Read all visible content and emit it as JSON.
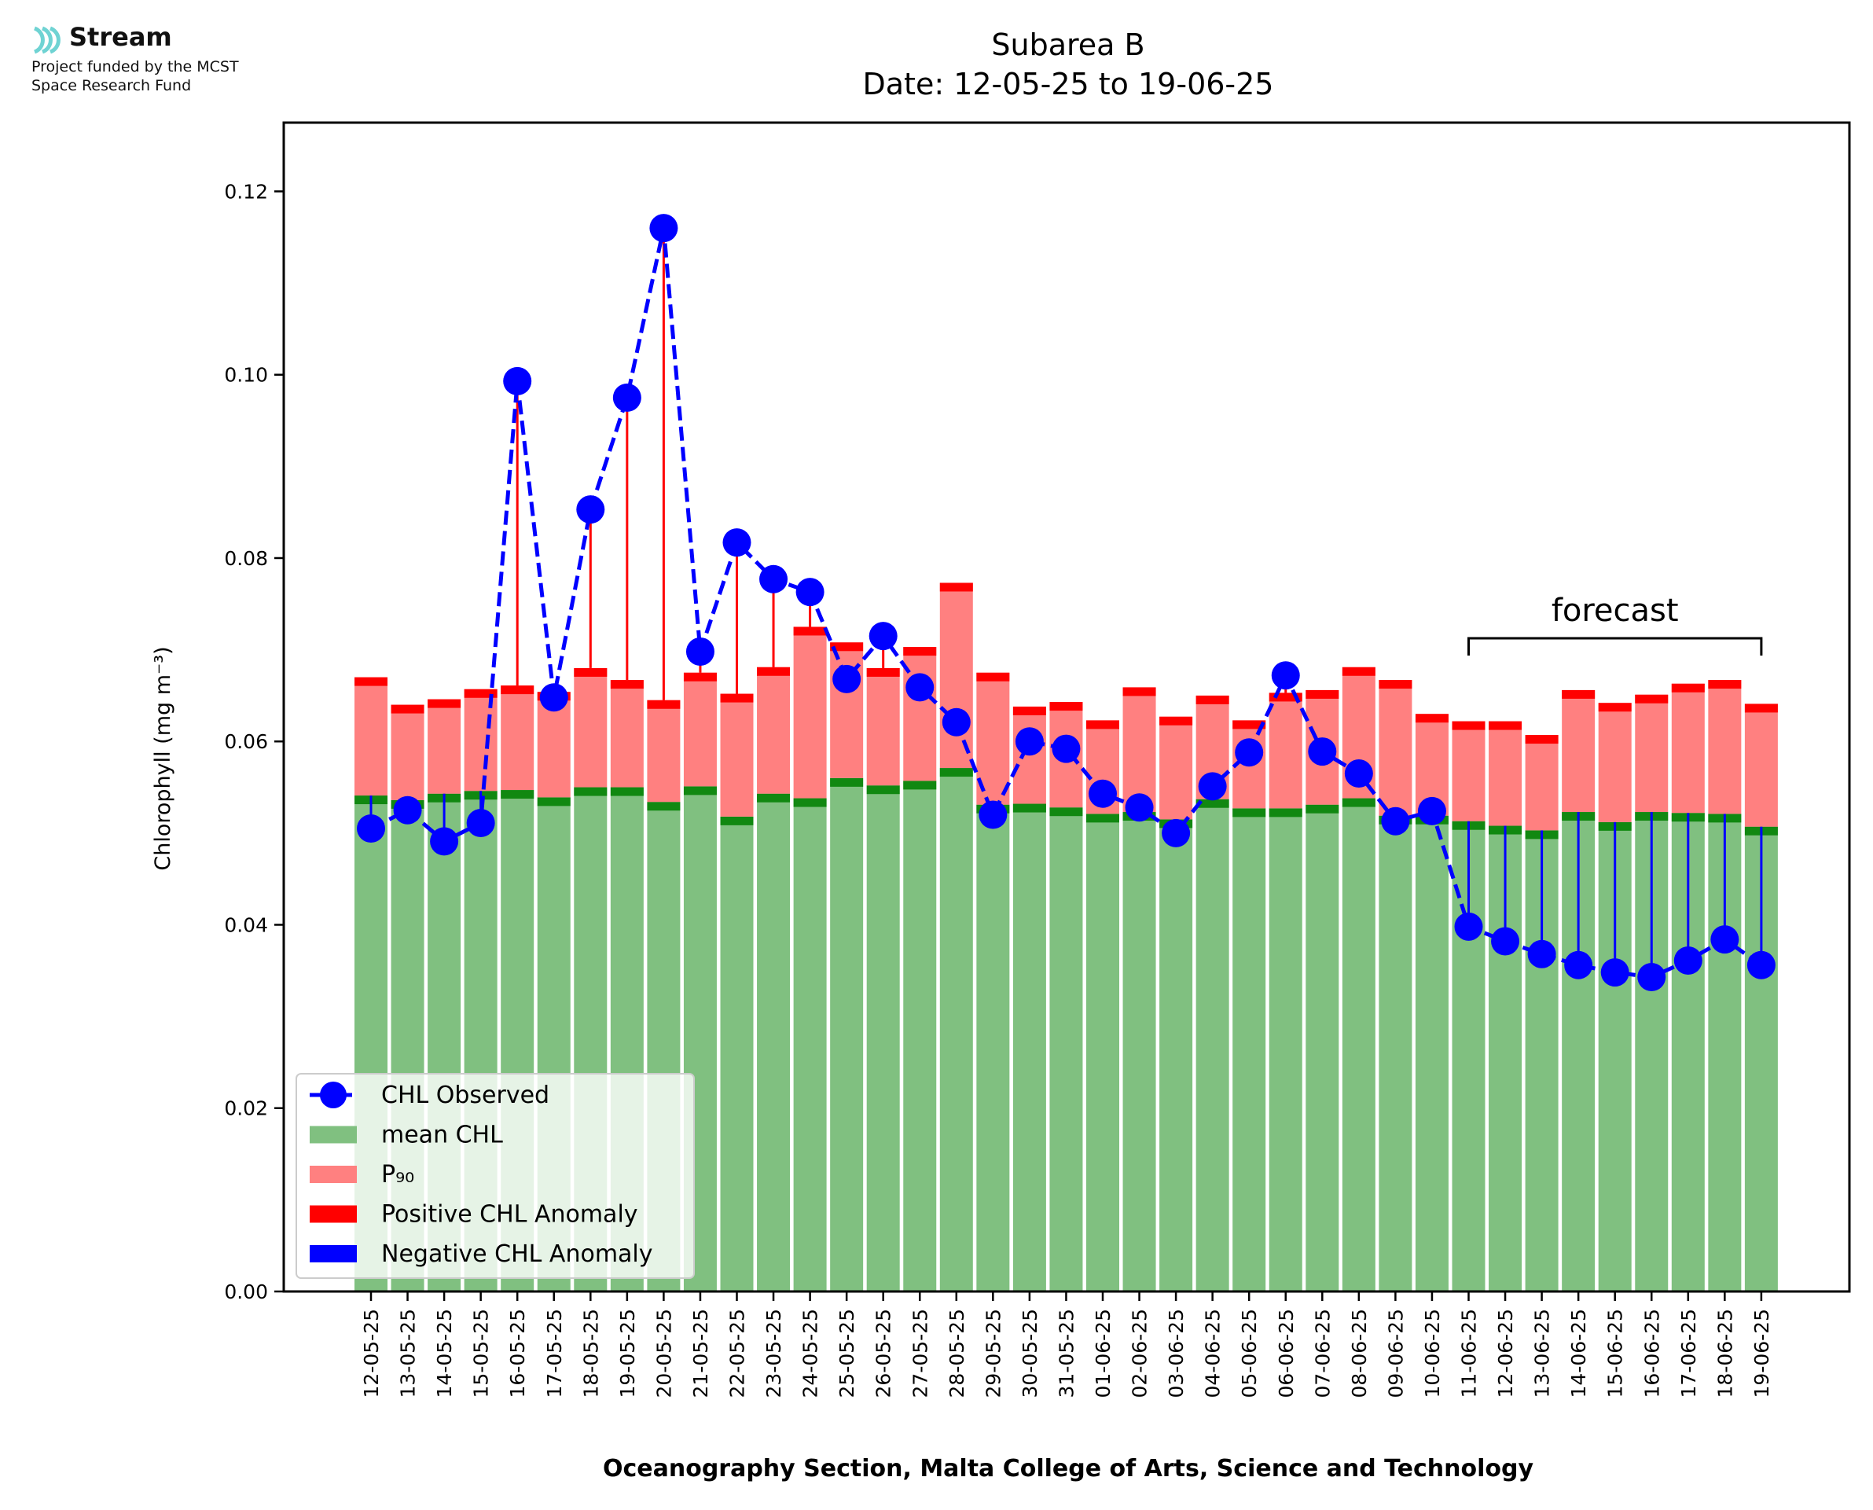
{
  "logo": {
    "name": "Stream",
    "line1": "Project funded by the MCST",
    "line2": "Space Research Fund",
    "color": "#6fd3d3"
  },
  "colors": {
    "mean": "#80c080",
    "mean_edge": "#118811",
    "p90": "#ff8080",
    "p90_edge": "#ff0000",
    "positive": "#ff0000",
    "negative": "#0000ff",
    "observed": "#0000ff"
  },
  "chart_data": {
    "type": "bar",
    "title": "Subarea B",
    "subtitle": "Date: 12-05-25 to 19-06-25",
    "xlabel": "Oceanography Section, Malta College of Arts, Science and Technology",
    "ylabel": "Chlorophyll (mg m⁻³)",
    "ylim": [
      0,
      0.1275
    ],
    "yticks": [
      0.0,
      0.02,
      0.04,
      0.06,
      0.08,
      0.1,
      0.12
    ],
    "ytick_labels": [
      "0.00",
      "0.02",
      "0.04",
      "0.06",
      "0.08",
      "0.10",
      "0.12"
    ],
    "categories": [
      "12-05-25",
      "13-05-25",
      "14-05-25",
      "15-05-25",
      "16-05-25",
      "17-05-25",
      "18-05-25",
      "19-05-25",
      "20-05-25",
      "21-05-25",
      "22-05-25",
      "23-05-25",
      "24-05-25",
      "25-05-25",
      "26-05-25",
      "27-05-25",
      "28-05-25",
      "29-05-25",
      "30-05-25",
      "31-05-25",
      "01-06-25",
      "02-06-25",
      "03-06-25",
      "04-06-25",
      "05-06-25",
      "06-06-25",
      "07-06-25",
      "08-06-25",
      "09-06-25",
      "10-06-25",
      "11-06-25",
      "12-06-25",
      "13-06-25",
      "14-06-25",
      "15-06-25",
      "16-06-25",
      "17-06-25",
      "18-06-25",
      "19-06-25"
    ],
    "series": [
      {
        "name": "mean CHL",
        "kind": "bar",
        "values": [
          0.0541,
          0.0536,
          0.0543,
          0.0546,
          0.0547,
          0.0539,
          0.055,
          0.055,
          0.0534,
          0.0551,
          0.0518,
          0.0543,
          0.0538,
          0.056,
          0.0552,
          0.0557,
          0.0571,
          0.0531,
          0.0532,
          0.0528,
          0.0521,
          0.0523,
          0.0515,
          0.0537,
          0.0527,
          0.0527,
          0.0531,
          0.0538,
          0.0519,
          0.0519,
          0.0513,
          0.0508,
          0.0503,
          0.0523,
          0.0512,
          0.0523,
          0.0522,
          0.0521,
          0.0507
        ]
      },
      {
        "name": "P₉₀",
        "kind": "bar",
        "values": [
          0.067,
          0.064,
          0.0646,
          0.0657,
          0.0661,
          0.0654,
          0.068,
          0.0667,
          0.0645,
          0.0675,
          0.0652,
          0.0681,
          0.0725,
          0.0708,
          0.068,
          0.0703,
          0.0773,
          0.0675,
          0.0638,
          0.0643,
          0.0623,
          0.0659,
          0.0627,
          0.065,
          0.0623,
          0.0653,
          0.0656,
          0.0681,
          0.0667,
          0.063,
          0.0622,
          0.0622,
          0.0607,
          0.0656,
          0.0642,
          0.0651,
          0.0663,
          0.0667,
          0.0641
        ]
      },
      {
        "name": "CHL Observed",
        "kind": "line",
        "values": [
          0.0505,
          0.0525,
          0.0491,
          0.0511,
          0.0993,
          0.0648,
          0.0853,
          0.0975,
          0.116,
          0.0698,
          0.0817,
          0.0777,
          0.0763,
          0.0668,
          0.0715,
          0.0659,
          0.0621,
          0.052,
          0.06,
          0.0592,
          0.0543,
          0.0528,
          0.05,
          0.0551,
          0.0588,
          0.0672,
          0.0589,
          0.0565,
          0.0513,
          0.0524,
          0.0398,
          0.0382,
          0.0368,
          0.0356,
          0.0348,
          0.0343,
          0.0361,
          0.0384,
          0.0356
        ]
      }
    ],
    "anomaly_series": [
      "Positive CHL Anomaly",
      "Negative CHL Anomaly"
    ],
    "annotation": {
      "text": "forecast",
      "from": "11-06-25",
      "to": "19-06-25"
    },
    "legend": {
      "placement": "lower-left",
      "entries": [
        "CHL Observed",
        "mean CHL",
        "P₉₀",
        "Positive CHL Anomaly",
        "Negative CHL Anomaly"
      ]
    },
    "grid": false
  }
}
